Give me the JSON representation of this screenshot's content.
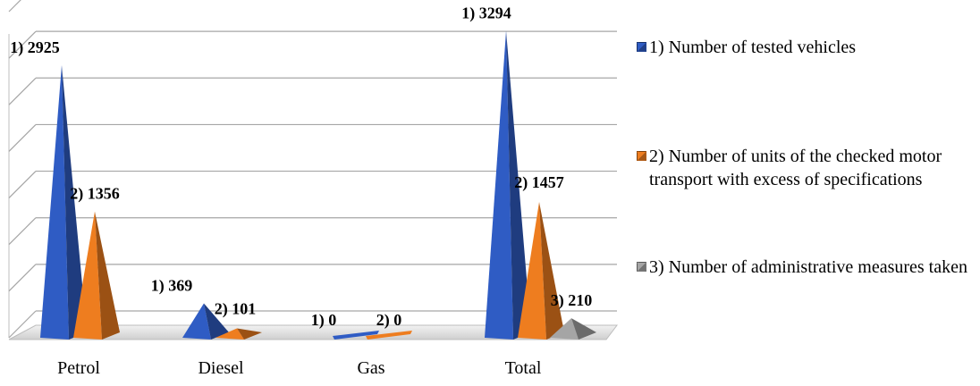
{
  "chart_data": {
    "type": "bar",
    "style": "3d-pyramid",
    "categories": [
      "Petrol",
      "Diesel",
      "Gas",
      "Total"
    ],
    "series": [
      {
        "name": "1) Number of tested vehicles",
        "prefix": "1) ",
        "color": "#2f5cc4",
        "values": [
          2925,
          369,
          0,
          3294
        ]
      },
      {
        "name": "2) Number of units of the checked motor transport with excess of specifications",
        "prefix": "2) ",
        "color": "#ee7d1f",
        "values": [
          1356,
          101,
          0,
          1457
        ]
      },
      {
        "name": "3) Number of administrative measures taken",
        "prefix": "3) ",
        "color": "#a5a5a5",
        "values": [
          null,
          null,
          null,
          210
        ]
      }
    ],
    "ylim": [
      0,
      3500
    ],
    "grid": true,
    "legend_position": "right",
    "title": "",
    "xlabel": "",
    "ylabel": ""
  },
  "legend": {
    "items": [
      {
        "label": "1) Number of tested vehicles",
        "color": "#2f5cc4"
      },
      {
        "label": "2) Number of units of the checked motor transport with excess of specifications",
        "color": "#ee7d1f"
      },
      {
        "label": "3) Number of administrative measures taken",
        "color": "#a5a5a5"
      }
    ]
  }
}
